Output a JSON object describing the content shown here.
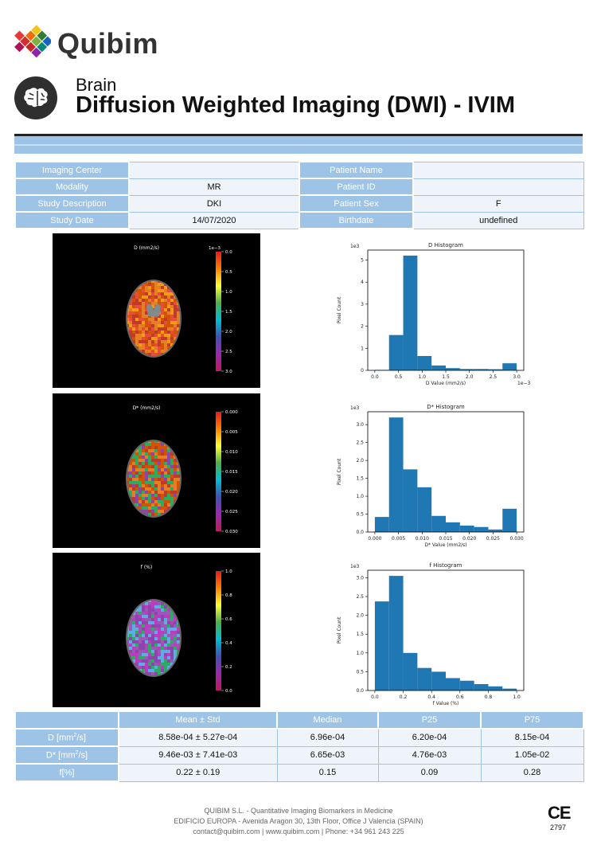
{
  "brand": {
    "name": "Quibim"
  },
  "header": {
    "organ": "Brain",
    "title": "Diffusion Weighted Imaging (DWI) - IVIM"
  },
  "info": {
    "rows": [
      {
        "label1": "Imaging Center",
        "value1": "",
        "label2": "Patient Name",
        "value2": ""
      },
      {
        "label1": "Modality",
        "value1": "MR",
        "label2": "Patient ID",
        "value2": ""
      },
      {
        "label1": "Study Description",
        "value1": "DKI",
        "label2": "Patient Sex",
        "value2": "F"
      },
      {
        "label1": "Study Date",
        "value1": "14/07/2020",
        "label2": "Birthdate",
        "value2": "undefined"
      }
    ]
  },
  "maps": [
    {
      "title": "D (mm2/s)",
      "scale_label": "1e−3",
      "ticks": [
        "0.0",
        "0.5",
        "1.0",
        "1.5",
        "2.0",
        "2.5",
        "3.0"
      ]
    },
    {
      "title": "D* (mm2/s)",
      "scale_label": "",
      "ticks": [
        "0.000",
        "0.005",
        "0.010",
        "0.015",
        "0.020",
        "0.025",
        "0.030"
      ]
    },
    {
      "title": "f (%)",
      "scale_label": "",
      "ticks": [
        "1.0",
        "0.8",
        "0.6",
        "0.4",
        "0.2",
        "0.0"
      ]
    }
  ],
  "chart_data": [
    {
      "type": "bar",
      "title": "D Histogram",
      "xlabel": "D Value (mm2/s)",
      "ylabel": "Pixel Count",
      "x_scale_label": "1e−3",
      "y_scale_label": "1e3",
      "bin_edges": [
        0.0,
        0.3,
        0.6,
        0.9,
        1.2,
        1.5,
        1.8,
        2.1,
        2.4,
        2.7,
        3.0
      ],
      "values": [
        0.02,
        1.6,
        5.2,
        0.65,
        0.22,
        0.1,
        0.06,
        0.06,
        0.05,
        0.32
      ],
      "xlim": [
        -0.15,
        3.15
      ],
      "ylim": [
        0,
        5.45
      ],
      "xticks": [
        "0.0",
        "0.5",
        "1.0",
        "1.5",
        "2.0",
        "2.5",
        "3.0"
      ],
      "yticks": [
        "0",
        "1",
        "2",
        "3",
        "4",
        "5"
      ],
      "color": "#1f77b4"
    },
    {
      "type": "bar",
      "title": "D* Histogram",
      "xlabel": "D* Value (mm2/s)",
      "ylabel": "Pixel Count",
      "x_scale_label": "",
      "y_scale_label": "1e3",
      "bin_edges": [
        0.0,
        0.003,
        0.006,
        0.009,
        0.012,
        0.015,
        0.018,
        0.021,
        0.024,
        0.027,
        0.03
      ],
      "values": [
        0.42,
        3.2,
        1.75,
        1.25,
        0.45,
        0.27,
        0.18,
        0.14,
        0.07,
        0.65
      ],
      "xlim": [
        -0.0015,
        0.0315
      ],
      "ylim": [
        0,
        3.36
      ],
      "xticks": [
        "0.000",
        "0.005",
        "0.010",
        "0.015",
        "0.020",
        "0.025",
        "0.030"
      ],
      "yticks": [
        "0.0",
        "0.5",
        "1.0",
        "1.5",
        "2.0",
        "2.5",
        "3.0"
      ],
      "color": "#1f77b4"
    },
    {
      "type": "bar",
      "title": "f Histogram",
      "xlabel": "f Value (%)",
      "ylabel": "Pixel Count",
      "x_scale_label": "",
      "y_scale_label": "1e3",
      "bin_edges": [
        0.0,
        0.1,
        0.2,
        0.3,
        0.4,
        0.5,
        0.6,
        0.7,
        0.8,
        0.9,
        1.0
      ],
      "values": [
        2.37,
        3.05,
        1.0,
        0.6,
        0.5,
        0.33,
        0.26,
        0.17,
        0.11,
        0.05
      ],
      "xlim": [
        -0.05,
        1.05
      ],
      "ylim": [
        0,
        3.2
      ],
      "xticks": [
        "0.0",
        "0.2",
        "0.4",
        "0.6",
        "0.8",
        "1.0"
      ],
      "yticks": [
        "0.0",
        "0.5",
        "1.0",
        "1.5",
        "2.0",
        "2.5",
        "3.0"
      ],
      "color": "#1f77b4"
    }
  ],
  "stats": {
    "headers": [
      "",
      "Mean ± Std",
      "Median",
      "P25",
      "P75"
    ],
    "rows": [
      {
        "param": "D [mm",
        "unit_sup": "2",
        "unit_tail": "/s]",
        "mean": "8.58e-04 ± 5.27e-04",
        "median": "6.96e-04",
        "p25": "6.20e-04",
        "p75": "8.15e-04"
      },
      {
        "param": "D* [mm",
        "unit_sup": "2",
        "unit_tail": "/s]",
        "mean": "9.46e-03 ± 7.41e-03",
        "median": "6.65e-03",
        "p25": "4.76e-03",
        "p75": "1.05e-02"
      },
      {
        "param": "f[%]",
        "unit_sup": "",
        "unit_tail": "",
        "mean": "0.22 ± 0.19",
        "median": "0.15",
        "p25": "0.09",
        "p75": "0.28"
      }
    ]
  },
  "footer": {
    "line1": "QUIBIM S.L. - Quantitative Imaging Biomarkers in Medicine",
    "line2": "EDIFICIO EUROPA - Avenida Aragon 30, 13th Floor, Office J Valencia (SPAIN)",
    "line3": "contact@quibim.com  |  www.quibim.com  |    Phone: +34 961 243 225",
    "ce_mark": "CE",
    "ce_number": "2797"
  }
}
